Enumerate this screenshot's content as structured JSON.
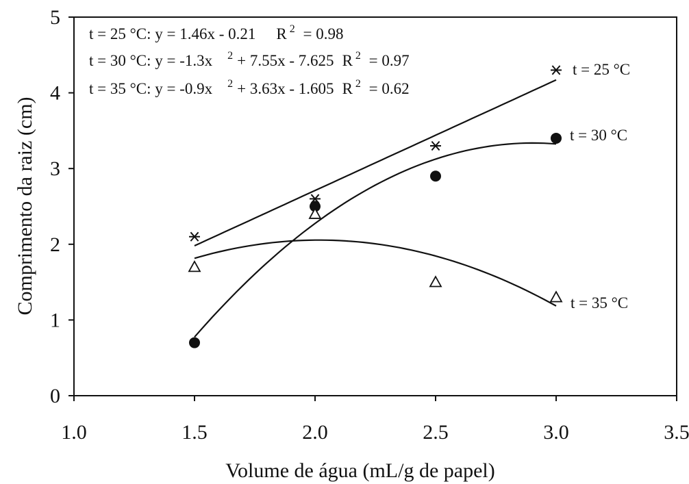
{
  "chart_data": {
    "type": "scatter",
    "xlabel": "Volume de água (mL/g de papel)",
    "ylabel": "Comprimento da raiz (cm)",
    "xlim": [
      1.0,
      3.5
    ],
    "ylim": [
      0,
      5
    ],
    "xticks": [
      "1.0",
      "1.5",
      "2.0",
      "2.5",
      "3.0",
      "3.5"
    ],
    "yticks": [
      "0",
      "1",
      "2",
      "3",
      "4",
      "5"
    ],
    "grid": false,
    "legend": "none",
    "equations": [
      {
        "parts": [
          "t = 25 °C: y = 1.46x - 0.21",
          "R",
          "2",
          " = 0.98"
        ]
      },
      {
        "parts": [
          "t = 30 °C: y = -1.3x",
          "2",
          "+ 7.55x - 7.625",
          "R",
          "2",
          " = 0.97"
        ]
      },
      {
        "parts": [
          "t = 35 °C: y = -0.9x",
          "2",
          "+ 3.63x - 1.605",
          "R",
          "2",
          " = 0.62"
        ]
      }
    ],
    "series": [
      {
        "name": "t = 25 °C",
        "marker": "asterisk",
        "x": [
          1.5,
          2.0,
          2.5,
          3.0
        ],
        "y": [
          2.1,
          2.6,
          3.3,
          4.3
        ],
        "fit": {
          "kind": "linear",
          "a": 0,
          "b": 1.46,
          "c": -0.21
        }
      },
      {
        "name": "t = 30 °C",
        "marker": "filled-circle",
        "x": [
          1.5,
          2.0,
          2.5,
          3.0
        ],
        "y": [
          0.7,
          2.5,
          2.9,
          3.4
        ],
        "fit": {
          "kind": "quadratic",
          "a": -1.3,
          "b": 7.55,
          "c": -7.625
        }
      },
      {
        "name": "t = 35 °C",
        "marker": "open-triangle",
        "x": [
          1.5,
          2.0,
          2.5,
          3.0
        ],
        "y": [
          1.7,
          2.4,
          1.5,
          1.3
        ],
        "fit": {
          "kind": "quadratic",
          "a": -0.9,
          "b": 3.63,
          "c": -1.605
        }
      }
    ]
  }
}
